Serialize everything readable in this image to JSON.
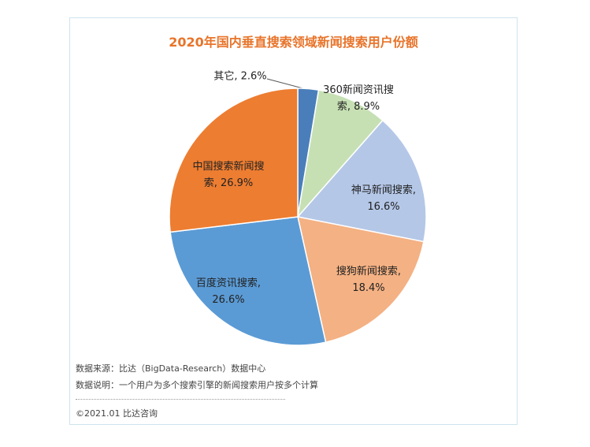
{
  "chart_data": {
    "type": "pie",
    "title": "2020年国内垂直搜索领域新闻搜索用户份额",
    "values": [
      2.6,
      8.9,
      16.6,
      18.4,
      26.6,
      26.9
    ],
    "value_labels": [
      "其它, 2.6%",
      "360新闻资讯搜索, 8.9%",
      "神马新闻搜索, 16.6%",
      "搜狗新闻搜索, 18.4%",
      "百度资讯搜索, 26.6%",
      "中国搜索新闻搜索, 26.9%"
    ],
    "colors": [
      "#4a7ebb",
      "#c6e0b4",
      "#b4c7e7",
      "#f4b183",
      "#5b9bd5",
      "#ed7d31"
    ]
  },
  "footer": {
    "notes": [
      "数据来源：比达（BigData-Research）数据中心",
      "数据说明：一个用户为多个搜索引擎的新闻搜索用户按多个计算"
    ],
    "copyright": "©2021.01 比达咨询"
  }
}
